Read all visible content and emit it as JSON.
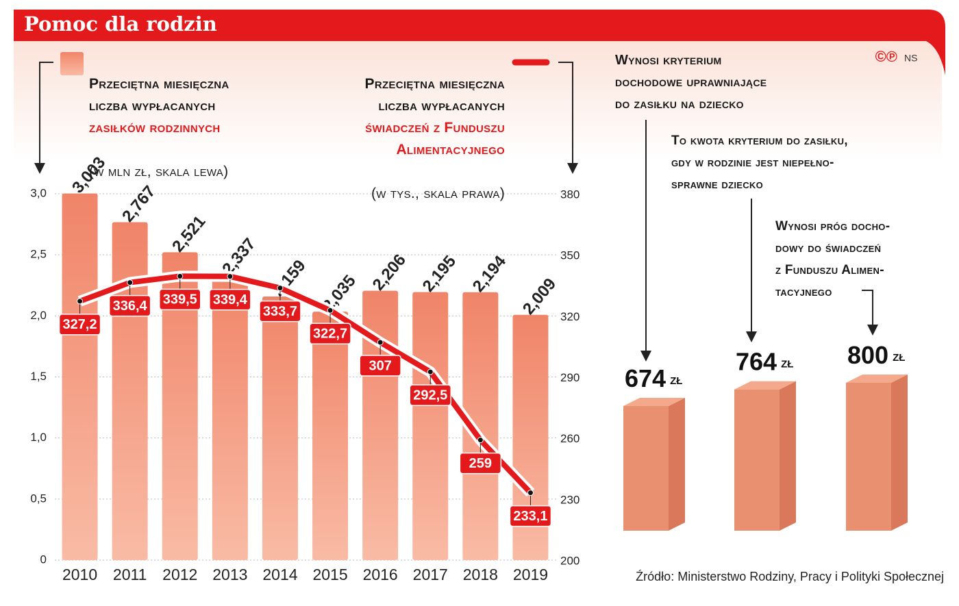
{
  "title": "Pomoc dla rodzin",
  "copyright": "©℗",
  "author": "NS",
  "source": "Źródło: Ministerstwo Rodziny, Pracy i Polityki Społecznej",
  "chart_data": [
    {
      "type": "combo",
      "categories": [
        "2010",
        "2011",
        "2012",
        "2013",
        "2014",
        "2015",
        "2016",
        "2017",
        "2018",
        "2019"
      ],
      "series": [
        {
          "name": "Przeciętna miesięczna\nliczba wypłacanych",
          "name_highlight": "zasiłków rodzinnych",
          "note": "(w mln zł, skala lewa)",
          "type": "bar",
          "color": "#f08468",
          "values": [
            3.003,
            2.767,
            2.521,
            2.337,
            2.159,
            2.035,
            2.206,
            2.195,
            2.194,
            2.009
          ],
          "value_labels": [
            "3,003",
            "2,767",
            "2,521",
            "2,337",
            "2,159",
            "2,035",
            "2,206",
            "2,195",
            "2,194",
            "2,009"
          ]
        },
        {
          "name": "Przeciętna miesięczna\nliczba wypłacanych",
          "name_highlight": "świadczeń z Funduszu\nAlimentacyjnego",
          "note": "(w tys., skala prawa)",
          "type": "line",
          "axis": "y2",
          "color": "#e3191c",
          "values": [
            327.2,
            336.4,
            339.5,
            339.4,
            333.7,
            322.7,
            307,
            292.5,
            259,
            233.1
          ],
          "value_labels": [
            "327,2",
            "336,4",
            "339,5",
            "339,4",
            "333,7",
            "322,7",
            "307",
            "292,5",
            "259",
            "233,1"
          ]
        }
      ],
      "ylim": [
        0,
        3
      ],
      "yticks": [
        0,
        {
          "value": 0.5,
          "label": "0,5"
        },
        {
          "value": 1,
          "label": "1,0"
        },
        {
          "value": 1.5,
          "label": "1,5"
        },
        {
          "value": 2,
          "label": "2,0"
        },
        {
          "value": 2.5,
          "label": "2,5"
        },
        {
          "value": 3,
          "label": "3,0"
        }
      ],
      "y2lim": [
        200,
        380
      ],
      "y2ticks": [
        200,
        230,
        260,
        290,
        320,
        350,
        380
      ],
      "grid": true
    },
    {
      "type": "bar3d",
      "categories": [
        "Wynosi kryterium\ndochodowe uprawniające\ndo zasiłku na dziecko",
        "To kwota kryterium do zasiłku,\ngdy w rodzinie jest niepełno-\nsprawne dziecko",
        "Wynosi próg docho-\ndowy do świadczeń\nz Funduszu Alimen-\ntacyjnego"
      ],
      "values": [
        674,
        764,
        800
      ],
      "unit": "zł",
      "color": "#e8906f"
    }
  ]
}
